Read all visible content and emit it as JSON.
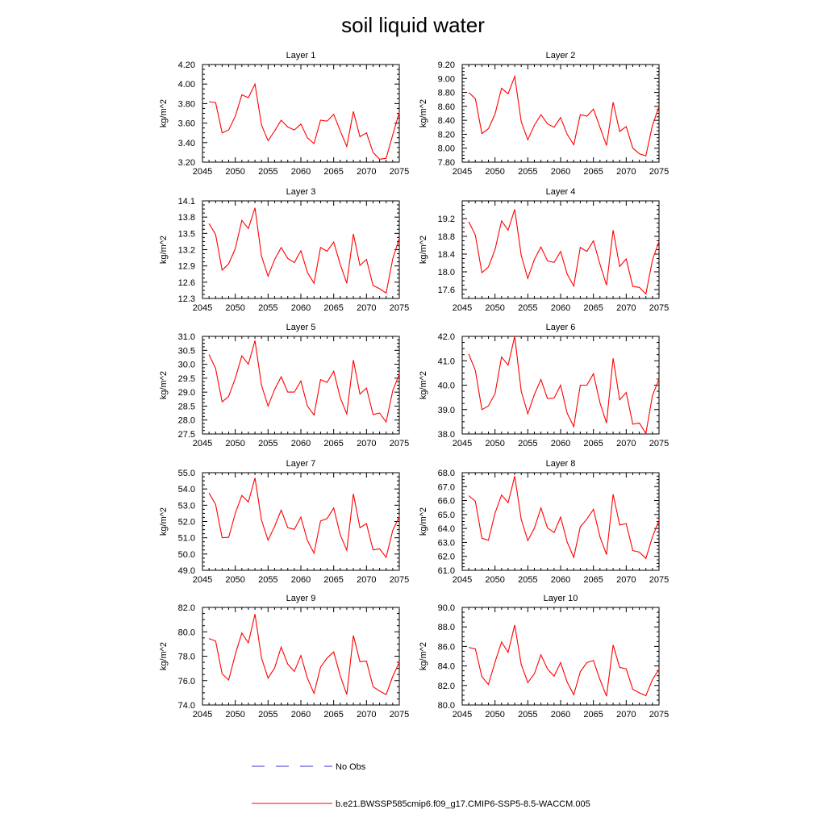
{
  "figure": {
    "title": "soil liquid water",
    "legend": [
      {
        "label": "No Obs",
        "color": "#3333cc",
        "dash": "dashed"
      },
      {
        "label": "b.e21.BWSSP585cmip6.f09_g17.CMIP6-SSP5-8.5-WACCM.005",
        "color": "#ff0000",
        "dash": "solid"
      }
    ]
  },
  "chart_data": [
    {
      "type": "line",
      "title": "Layer 1",
      "ylabel": "kg/m^2",
      "xlabel": "",
      "xlim": [
        2045,
        2075
      ],
      "ylim": [
        3.2,
        4.2
      ],
      "xticks": [
        "2045",
        "2050",
        "2055",
        "2060",
        "2065",
        "2070",
        "2075"
      ],
      "yticks": [
        "3.20",
        "3.40",
        "3.60",
        "3.80",
        "4.00",
        "4.20"
      ],
      "series": [
        {
          "color": "#ff0000",
          "x": [
            2046,
            2047,
            2048,
            2049,
            2050,
            2051,
            2052,
            2053,
            2054,
            2055,
            2056,
            2057,
            2058,
            2059,
            2060,
            2061,
            2062,
            2063,
            2064,
            2065,
            2066,
            2067,
            2068,
            2069,
            2070,
            2071,
            2072,
            2073,
            2074,
            2075
          ],
          "values": [
            3.82,
            3.81,
            3.5,
            3.53,
            3.67,
            3.89,
            3.86,
            4.0,
            3.58,
            3.42,
            3.52,
            3.63,
            3.56,
            3.53,
            3.59,
            3.45,
            3.39,
            3.63,
            3.62,
            3.69,
            3.52,
            3.36,
            3.72,
            3.46,
            3.5,
            3.3,
            3.23,
            3.24,
            3.48,
            3.71
          ]
        }
      ]
    },
    {
      "type": "line",
      "title": "Layer 2",
      "ylabel": "kg/m^2",
      "xlabel": "",
      "xlim": [
        2045,
        2075
      ],
      "ylim": [
        7.8,
        9.2
      ],
      "xticks": [
        "2045",
        "2050",
        "2055",
        "2060",
        "2065",
        "2070",
        "2075"
      ],
      "yticks": [
        "7.80",
        "8.00",
        "8.20",
        "8.40",
        "8.60",
        "8.80",
        "9.00",
        "9.20"
      ],
      "series": [
        {
          "color": "#ff0000",
          "x": [
            2046,
            2047,
            2048,
            2049,
            2050,
            2051,
            2052,
            2053,
            2054,
            2055,
            2056,
            2057,
            2058,
            2059,
            2060,
            2061,
            2062,
            2063,
            2064,
            2065,
            2066,
            2067,
            2068,
            2069,
            2070,
            2071,
            2072,
            2073,
            2074,
            2075
          ],
          "values": [
            8.8,
            8.71,
            8.21,
            8.28,
            8.49,
            8.86,
            8.78,
            9.03,
            8.38,
            8.12,
            8.33,
            8.48,
            8.35,
            8.3,
            8.44,
            8.2,
            8.05,
            8.48,
            8.46,
            8.56,
            8.3,
            8.04,
            8.66,
            8.24,
            8.31,
            8.0,
            7.92,
            7.89,
            8.33,
            8.6
          ]
        }
      ]
    },
    {
      "type": "line",
      "title": "Layer 3",
      "ylabel": "kg/m^2",
      "xlabel": "",
      "xlim": [
        2045,
        2075
      ],
      "ylim": [
        12.3,
        14.1
      ],
      "xticks": [
        "2045",
        "2050",
        "2055",
        "2060",
        "2065",
        "2070",
        "2075"
      ],
      "yticks": [
        "12.3",
        "12.6",
        "12.9",
        "13.2",
        "13.5",
        "13.8",
        "14.1"
      ],
      "series": [
        {
          "color": "#ff0000",
          "x": [
            2046,
            2047,
            2048,
            2049,
            2050,
            2051,
            2052,
            2053,
            2054,
            2055,
            2056,
            2057,
            2058,
            2059,
            2060,
            2061,
            2062,
            2063,
            2064,
            2065,
            2066,
            2067,
            2068,
            2069,
            2070,
            2071,
            2072,
            2073,
            2074,
            2075
          ],
          "values": [
            13.68,
            13.48,
            12.82,
            12.94,
            13.22,
            13.74,
            13.59,
            13.97,
            13.08,
            12.71,
            13.02,
            13.24,
            13.04,
            12.96,
            13.18,
            12.78,
            12.58,
            13.24,
            13.17,
            13.34,
            12.93,
            12.58,
            13.49,
            12.91,
            13.02,
            12.54,
            12.48,
            12.4,
            13.03,
            13.41
          ]
        }
      ]
    },
    {
      "type": "line",
      "title": "Layer 4",
      "ylabel": "kg/m^2",
      "xlabel": "",
      "xlim": [
        2045,
        2075
      ],
      "ylim": [
        17.4,
        19.6
      ],
      "xticks": [
        "2045",
        "2050",
        "2055",
        "2060",
        "2065",
        "2070",
        "2075"
      ],
      "yticks": [
        "17.6",
        "18.0",
        "18.4",
        "18.8",
        "19.2"
      ],
      "series": [
        {
          "color": "#ff0000",
          "x": [
            2046,
            2047,
            2048,
            2049,
            2050,
            2051,
            2052,
            2053,
            2054,
            2055,
            2056,
            2057,
            2058,
            2059,
            2060,
            2061,
            2062,
            2063,
            2064,
            2065,
            2066,
            2067,
            2068,
            2069,
            2070,
            2071,
            2072,
            2073,
            2074,
            2075
          ],
          "values": [
            19.13,
            18.83,
            17.98,
            18.11,
            18.5,
            19.15,
            18.94,
            19.41,
            18.37,
            17.85,
            18.28,
            18.56,
            18.25,
            18.21,
            18.46,
            17.95,
            17.68,
            18.55,
            18.46,
            18.7,
            18.17,
            17.7,
            18.94,
            18.12,
            18.29,
            17.67,
            17.65,
            17.5,
            18.27,
            18.69
          ]
        }
      ]
    },
    {
      "type": "line",
      "title": "Layer 5",
      "ylabel": "kg/m^2",
      "xlabel": "",
      "xlim": [
        2045,
        2075
      ],
      "ylim": [
        27.5,
        31.0
      ],
      "xticks": [
        "2045",
        "2050",
        "2055",
        "2060",
        "2065",
        "2070",
        "2075"
      ],
      "yticks": [
        "27.5",
        "28.0",
        "28.5",
        "29.0",
        "29.5",
        "30.0",
        "30.5",
        "31.0"
      ],
      "series": [
        {
          "color": "#ff0000",
          "x": [
            2046,
            2047,
            2048,
            2049,
            2050,
            2051,
            2052,
            2053,
            2054,
            2055,
            2056,
            2057,
            2058,
            2059,
            2060,
            2061,
            2062,
            2063,
            2064,
            2065,
            2066,
            2067,
            2068,
            2069,
            2070,
            2071,
            2072,
            2073,
            2074,
            2075
          ],
          "values": [
            30.35,
            29.85,
            28.65,
            28.85,
            29.5,
            30.3,
            30.0,
            30.85,
            29.25,
            28.5,
            29.1,
            29.55,
            29.0,
            29.0,
            29.4,
            28.5,
            28.18,
            29.45,
            29.35,
            29.75,
            28.8,
            28.22,
            30.15,
            28.93,
            29.15,
            28.2,
            28.25,
            27.93,
            29.05,
            29.65
          ]
        }
      ]
    },
    {
      "type": "line",
      "title": "Layer 6",
      "ylabel": "kg/m^2",
      "xlabel": "",
      "xlim": [
        2045,
        2075
      ],
      "ylim": [
        38.0,
        42.0
      ],
      "xticks": [
        "2045",
        "2050",
        "2055",
        "2060",
        "2065",
        "2070",
        "2075"
      ],
      "yticks": [
        "38.0",
        "39.0",
        "40.0",
        "41.0",
        "42.0"
      ],
      "series": [
        {
          "color": "#ff0000",
          "x": [
            2046,
            2047,
            2048,
            2049,
            2050,
            2051,
            2052,
            2053,
            2054,
            2055,
            2056,
            2057,
            2058,
            2059,
            2060,
            2061,
            2062,
            2063,
            2064,
            2065,
            2066,
            2067,
            2068,
            2069,
            2070,
            2071,
            2072,
            2073,
            2074,
            2075
          ],
          "values": [
            41.28,
            40.6,
            39.0,
            39.15,
            39.65,
            41.15,
            40.82,
            42.0,
            39.75,
            38.83,
            39.62,
            40.23,
            39.45,
            39.47,
            40.0,
            38.85,
            38.3,
            40.0,
            40.0,
            40.47,
            39.28,
            38.45,
            41.1,
            39.4,
            39.7,
            38.4,
            38.45,
            38.02,
            39.58,
            40.25
          ]
        }
      ]
    },
    {
      "type": "line",
      "title": "Layer 7",
      "ylabel": "kg/m^2",
      "xlabel": "",
      "xlim": [
        2045,
        2075
      ],
      "ylim": [
        49.0,
        55.0
      ],
      "xticks": [
        "2045",
        "2050",
        "2055",
        "2060",
        "2065",
        "2070",
        "2075"
      ],
      "yticks": [
        "49.0",
        "50.0",
        "51.0",
        "52.0",
        "53.0",
        "54.0",
        "55.0"
      ],
      "series": [
        {
          "color": "#ff0000",
          "x": [
            2046,
            2047,
            2048,
            2049,
            2050,
            2051,
            2052,
            2053,
            2054,
            2055,
            2056,
            2057,
            2058,
            2059,
            2060,
            2061,
            2062,
            2063,
            2064,
            2065,
            2066,
            2067,
            2068,
            2069,
            2070,
            2071,
            2072,
            2073,
            2074,
            2075
          ],
          "values": [
            53.75,
            53.05,
            51.0,
            51.03,
            52.5,
            53.6,
            53.2,
            54.68,
            52.08,
            50.85,
            51.7,
            52.7,
            51.62,
            51.52,
            52.27,
            50.83,
            50.05,
            52.03,
            52.18,
            52.83,
            51.18,
            50.23,
            53.7,
            51.62,
            51.87,
            50.25,
            50.32,
            49.8,
            51.45,
            52.3
          ]
        }
      ]
    },
    {
      "type": "line",
      "title": "Layer 8",
      "ylabel": "kg/m^2",
      "xlabel": "",
      "xlim": [
        2045,
        2075
      ],
      "ylim": [
        61.0,
        68.0
      ],
      "xticks": [
        "2045",
        "2050",
        "2055",
        "2060",
        "2065",
        "2070",
        "2075"
      ],
      "yticks": [
        "61.0",
        "62.0",
        "63.0",
        "64.0",
        "65.0",
        "66.0",
        "67.0",
        "68.0"
      ],
      "series": [
        {
          "color": "#ff0000",
          "x": [
            2046,
            2047,
            2048,
            2049,
            2050,
            2051,
            2052,
            2053,
            2054,
            2055,
            2056,
            2057,
            2058,
            2059,
            2060,
            2061,
            2062,
            2063,
            2064,
            2065,
            2066,
            2067,
            2068,
            2069,
            2070,
            2071,
            2072,
            2073,
            2074,
            2075
          ],
          "values": [
            66.35,
            65.95,
            63.3,
            63.15,
            65.1,
            66.4,
            65.85,
            67.75,
            64.65,
            63.13,
            64.02,
            65.47,
            64.05,
            63.7,
            64.82,
            63.03,
            61.93,
            64.12,
            64.67,
            65.37,
            63.4,
            62.13,
            66.45,
            64.25,
            64.35,
            62.42,
            62.3,
            61.85,
            63.4,
            64.58
          ]
        }
      ]
    },
    {
      "type": "line",
      "title": "Layer 9",
      "ylabel": "kg/m^2",
      "xlabel": "",
      "xlim": [
        2045,
        2075
      ],
      "ylim": [
        74.0,
        82.0
      ],
      "xticks": [
        "2045",
        "2050",
        "2055",
        "2060",
        "2065",
        "2070",
        "2075"
      ],
      "yticks": [
        "74.0",
        "76.0",
        "78.0",
        "80.0",
        "82.0"
      ],
      "series": [
        {
          "color": "#ff0000",
          "x": [
            2046,
            2047,
            2048,
            2049,
            2050,
            2051,
            2052,
            2053,
            2054,
            2055,
            2056,
            2057,
            2058,
            2059,
            2060,
            2061,
            2062,
            2063,
            2064,
            2065,
            2066,
            2067,
            2068,
            2069,
            2070,
            2071,
            2072,
            2073,
            2074,
            2075
          ],
          "values": [
            79.45,
            79.25,
            76.55,
            76.05,
            78.15,
            79.9,
            79.1,
            81.45,
            77.85,
            76.2,
            77.05,
            78.75,
            77.35,
            76.75,
            78.05,
            76.2,
            74.95,
            77.1,
            77.85,
            78.35,
            76.4,
            74.85,
            79.7,
            77.55,
            77.6,
            75.5,
            75.15,
            74.85,
            76.35,
            77.5
          ]
        }
      ]
    },
    {
      "type": "line",
      "title": "Layer 10",
      "ylabel": "kg/m^2",
      "xlabel": "",
      "xlim": [
        2045,
        2075
      ],
      "ylim": [
        80.0,
        90.0
      ],
      "xticks": [
        "2045",
        "2050",
        "2055",
        "2060",
        "2065",
        "2070",
        "2075"
      ],
      "yticks": [
        "80.0",
        "82.0",
        "84.0",
        "86.0",
        "88.0",
        "90.0"
      ],
      "series": [
        {
          "color": "#ff0000",
          "x": [
            2046,
            2047,
            2048,
            2049,
            2050,
            2051,
            2052,
            2053,
            2054,
            2055,
            2056,
            2057,
            2058,
            2059,
            2060,
            2061,
            2062,
            2063,
            2064,
            2065,
            2066,
            2067,
            2068,
            2069,
            2070,
            2071,
            2072,
            2073,
            2074,
            2075
          ],
          "values": [
            85.9,
            85.75,
            82.9,
            82.1,
            84.4,
            86.45,
            85.4,
            88.2,
            84.15,
            82.3,
            83.2,
            85.15,
            83.7,
            82.95,
            84.35,
            82.35,
            81.05,
            83.4,
            84.35,
            84.55,
            82.6,
            80.9,
            86.15,
            83.85,
            83.7,
            81.6,
            81.25,
            80.95,
            82.6,
            83.65
          ]
        }
      ]
    }
  ]
}
